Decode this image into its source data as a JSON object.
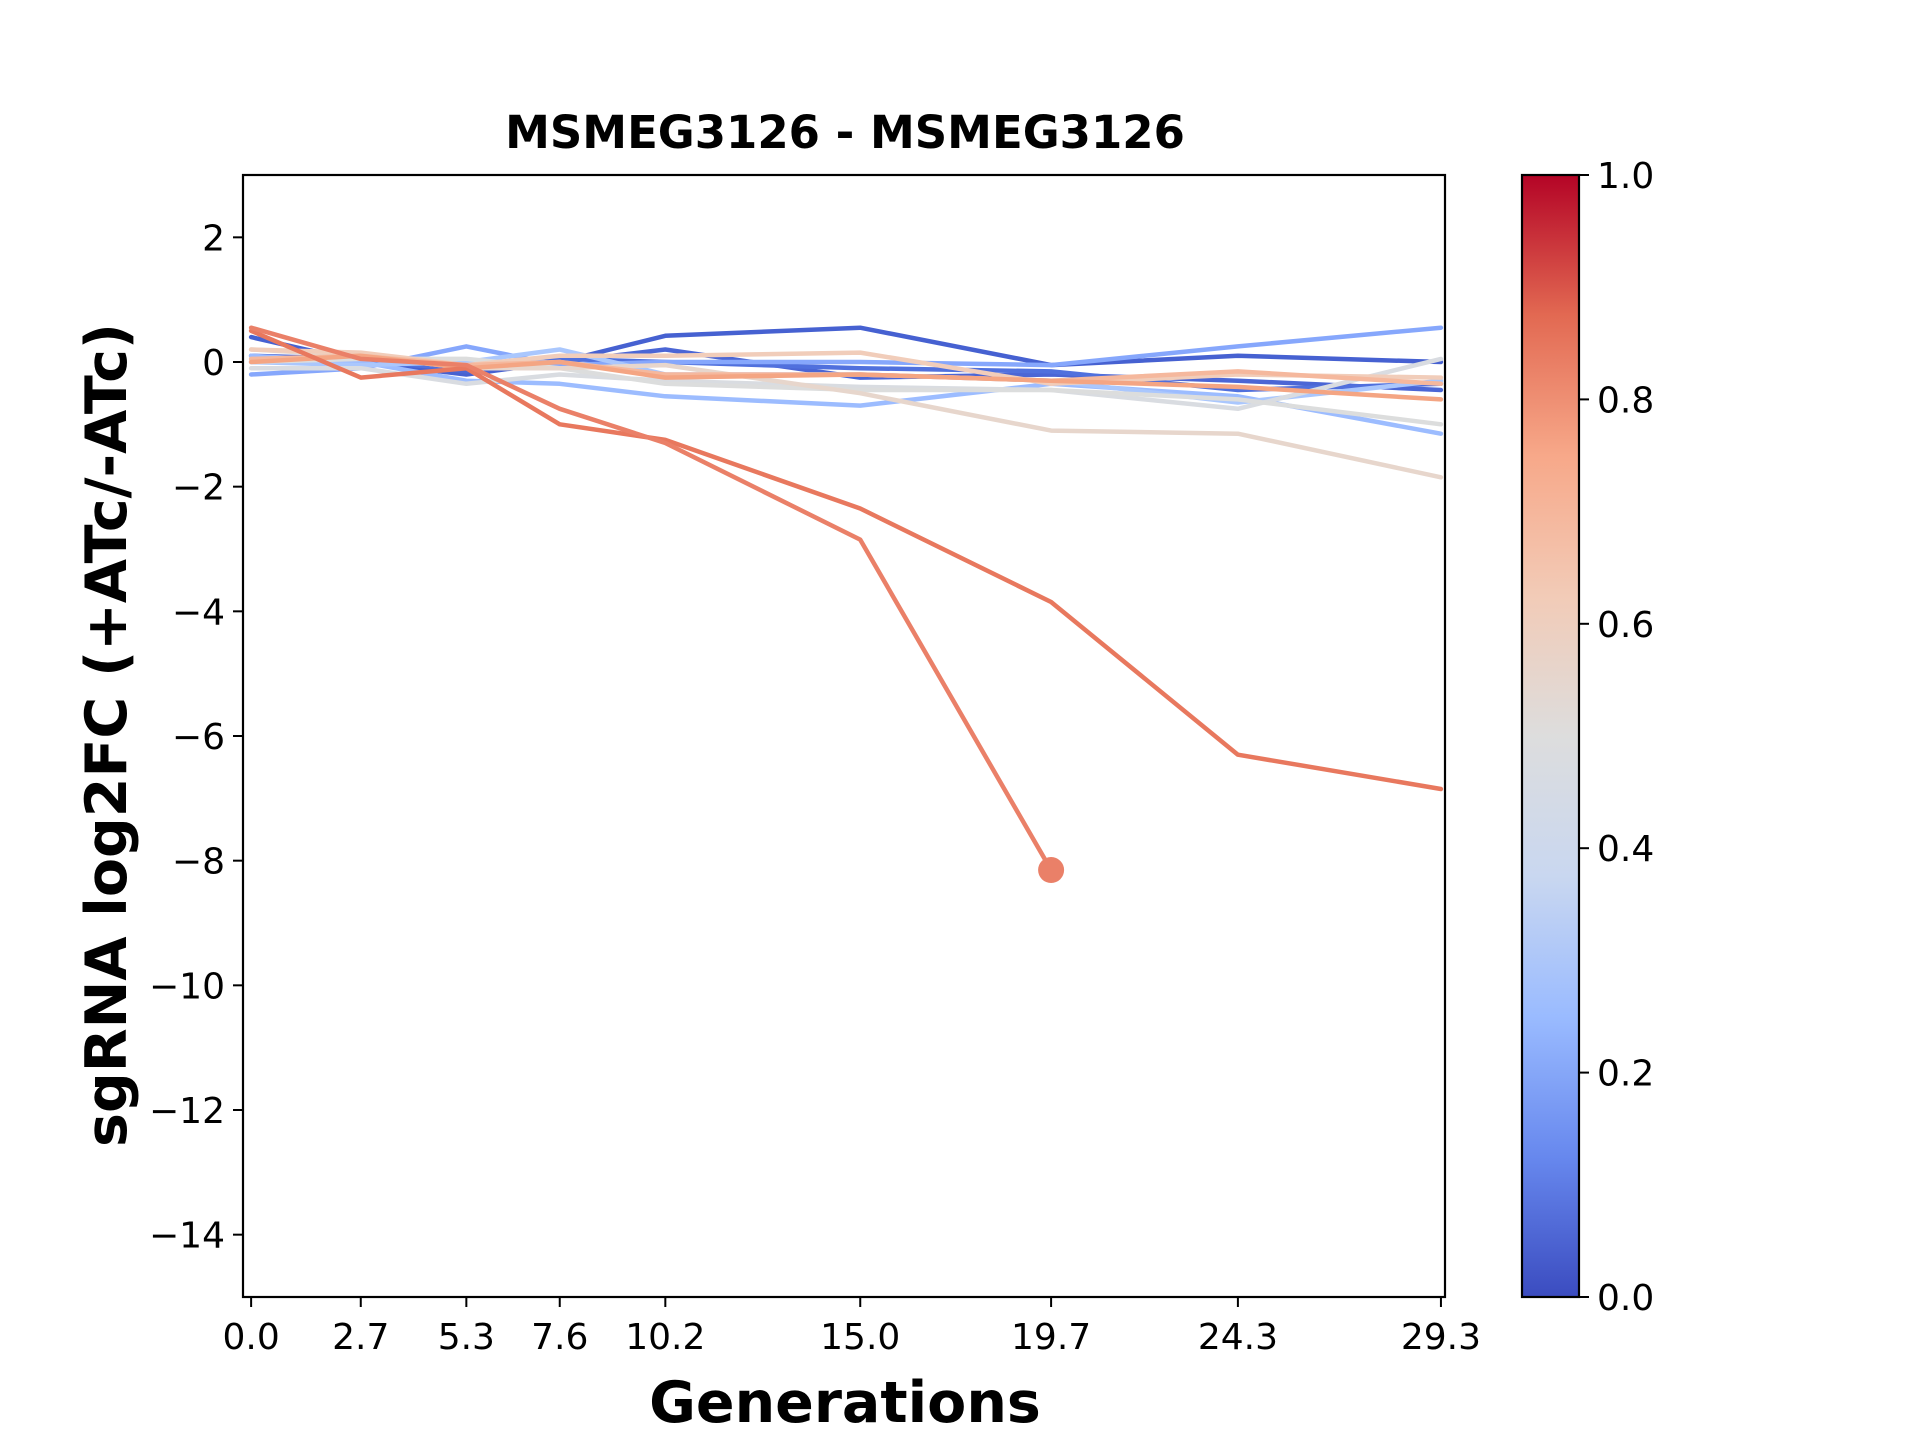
{
  "chart_data": {
    "type": "line",
    "title": "MSMEG3126 - MSMEG3126",
    "xlabel": "Generations",
    "ylabel": "sgRNA log2FC (+ATc/-ATc)",
    "x": [
      0.0,
      2.7,
      5.3,
      7.6,
      10.2,
      15.0,
      19.7,
      24.3,
      29.3
    ],
    "x_tick_labels": [
      "0.0",
      "2.7",
      "5.3",
      "7.6",
      "10.2",
      "15.0",
      "19.7",
      "24.3",
      "29.3"
    ],
    "xlim": [
      -0.2,
      29.4
    ],
    "ylim": [
      -15,
      3
    ],
    "y_ticks": [
      2,
      0,
      -2,
      -4,
      -6,
      -8,
      -10,
      -12,
      -14
    ],
    "y_tick_labels": [
      "2",
      "0",
      "−2",
      "−4",
      "−6",
      "−8",
      "−10",
      "−12",
      "−14"
    ],
    "grid": false,
    "legend": "none",
    "colorbar": {
      "range": [
        0.0,
        1.0
      ],
      "ticks": [
        0.0,
        0.2,
        0.4,
        0.6,
        0.8,
        1.0
      ],
      "tick_labels": [
        "0.0",
        "0.2",
        "0.4",
        "0.6",
        "0.8",
        "1.0"
      ],
      "colormap": "coolwarm",
      "stops": [
        "#3b4cc0",
        "#6788ee",
        "#9abbff",
        "#c9d7f0",
        "#dddddd",
        "#f2cbb7",
        "#f7a889",
        "#e26952",
        "#b40426"
      ]
    },
    "series": [
      {
        "color_value": 0.05,
        "color": "#4661d1",
        "values": [
          0.4,
          0.0,
          -0.2,
          0.0,
          0.42,
          0.55,
          -0.05,
          0.1,
          0.0
        ]
      },
      {
        "color_value": 0.08,
        "color": "#4b66d5",
        "values": [
          0.1,
          0.05,
          -0.15,
          0.0,
          0.2,
          -0.25,
          -0.2,
          -0.3,
          -0.45
        ]
      },
      {
        "color_value": 0.12,
        "color": "#5070dd",
        "values": [
          0.0,
          0.0,
          -0.1,
          0.05,
          0.0,
          -0.1,
          -0.15,
          -0.45,
          -0.35
        ]
      },
      {
        "color_value": 0.22,
        "color": "#86a7fc",
        "values": [
          -0.2,
          -0.1,
          0.25,
          -0.05,
          0.0,
          0.0,
          -0.05,
          0.25,
          0.55
        ]
      },
      {
        "color_value": 0.3,
        "color": "#9cbcff",
        "values": [
          0.1,
          0.0,
          -0.3,
          -0.35,
          -0.55,
          -0.7,
          -0.35,
          -0.55,
          -1.15
        ]
      },
      {
        "color_value": 0.35,
        "color": "#aac7fd",
        "values": [
          0.0,
          -0.05,
          0.0,
          0.2,
          -0.2,
          -0.2,
          -0.3,
          -0.65,
          -0.3
        ]
      },
      {
        "color_value": 0.48,
        "color": "#d9dce1",
        "values": [
          -0.1,
          -0.1,
          -0.35,
          -0.2,
          -0.3,
          -0.4,
          -0.45,
          -0.75,
          0.05
        ]
      },
      {
        "color_value": 0.5,
        "color": "#dcdddd",
        "values": [
          0.0,
          0.05,
          0.05,
          -0.1,
          -0.35,
          -0.45,
          -0.45,
          -0.6,
          -1.0
        ]
      },
      {
        "color_value": 0.55,
        "color": "#e7d6cc",
        "values": [
          0.2,
          0.1,
          -0.1,
          -0.1,
          -0.05,
          -0.5,
          -1.1,
          -1.15,
          -1.85
        ]
      },
      {
        "color_value": 0.6,
        "color": "#f1cdba",
        "values": [
          0.2,
          0.15,
          -0.05,
          0.1,
          0.1,
          0.15,
          -0.35,
          -0.2,
          -0.25
        ]
      },
      {
        "color_value": 0.7,
        "color": "#f5b89d",
        "values": [
          0.05,
          0.1,
          -0.05,
          0.0,
          -0.2,
          -0.2,
          -0.3,
          -0.15,
          -0.35
        ]
      },
      {
        "color_value": 0.72,
        "color": "#f4a583",
        "values": [
          0.0,
          0.1,
          -0.1,
          0.0,
          -0.25,
          -0.2,
          -0.3,
          -0.4,
          -0.6
        ]
      },
      {
        "color_value": 0.8,
        "color": "#e8785e",
        "values": [
          0.5,
          -0.25,
          -0.1,
          -1.0,
          -1.25,
          -2.35,
          -3.85,
          -6.3,
          -6.85
        ]
      },
      {
        "color_value": 0.78,
        "color": "#ea8068",
        "values": [
          0.55,
          0.05,
          -0.05,
          -0.75,
          -1.3,
          -2.85,
          -8.15,
          null,
          null
        ],
        "end_marker": true
      }
    ]
  }
}
